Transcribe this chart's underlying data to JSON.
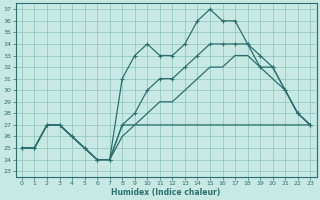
{
  "xlabel": "Humidex (Indice chaleur)",
  "xlim": [
    -0.5,
    23.5
  ],
  "ylim": [
    22.5,
    37.5
  ],
  "xticks": [
    0,
    1,
    2,
    3,
    4,
    5,
    6,
    7,
    8,
    9,
    10,
    11,
    12,
    13,
    14,
    15,
    16,
    17,
    18,
    19,
    20,
    21,
    22,
    23
  ],
  "yticks": [
    23,
    24,
    25,
    26,
    27,
    28,
    29,
    30,
    31,
    32,
    33,
    34,
    35,
    36,
    37
  ],
  "background_color": "#c8e8e4",
  "grid_color": "#8cc4be",
  "line_color": "#2a7070",
  "line1_x": [
    0,
    1,
    2,
    3,
    4,
    5,
    6,
    7,
    8,
    9,
    10,
    11,
    12,
    13,
    14,
    15,
    16,
    17,
    18,
    19,
    20,
    21,
    22,
    23
  ],
  "line1_y": [
    25,
    25,
    27,
    27,
    26,
    25,
    24,
    24,
    31,
    33,
    34,
    33,
    33,
    34,
    36,
    37,
    36,
    36,
    34,
    33,
    32,
    30,
    28,
    27
  ],
  "line2_x": [
    0,
    1,
    2,
    3,
    4,
    5,
    6,
    7,
    8,
    9,
    10,
    11,
    12,
    13,
    14,
    15,
    16,
    17,
    18,
    19,
    20,
    21,
    22,
    23
  ],
  "line2_y": [
    25,
    25,
    27,
    27,
    26,
    25,
    24,
    24,
    27,
    28,
    30,
    31,
    31,
    32,
    33,
    34,
    34,
    34,
    34,
    32,
    32,
    30,
    28,
    27
  ],
  "line3_x": [
    0,
    1,
    2,
    3,
    4,
    5,
    6,
    7,
    8,
    9,
    10,
    11,
    12,
    13,
    14,
    15,
    16,
    17,
    18,
    19,
    20,
    21,
    22,
    23
  ],
  "line3_y": [
    25,
    25,
    27,
    27,
    26,
    25,
    24,
    24,
    26,
    27,
    28,
    29,
    29,
    30,
    31,
    32,
    32,
    33,
    33,
    32,
    31,
    30,
    28,
    27
  ],
  "line4_x": [
    0,
    1,
    2,
    3,
    4,
    5,
    6,
    7,
    8,
    9,
    10,
    11,
    12,
    13,
    14,
    15,
    16,
    17,
    18,
    19,
    20,
    21,
    22,
    23
  ],
  "line4_y": [
    25,
    25,
    27,
    27,
    26,
    25,
    24,
    24,
    27,
    27,
    27,
    27,
    27,
    27,
    27,
    27,
    27,
    27,
    27,
    27,
    27,
    27,
    27,
    27
  ],
  "line1_markers": true,
  "line2_markers": true,
  "line3_markers": false,
  "line4_markers": false
}
